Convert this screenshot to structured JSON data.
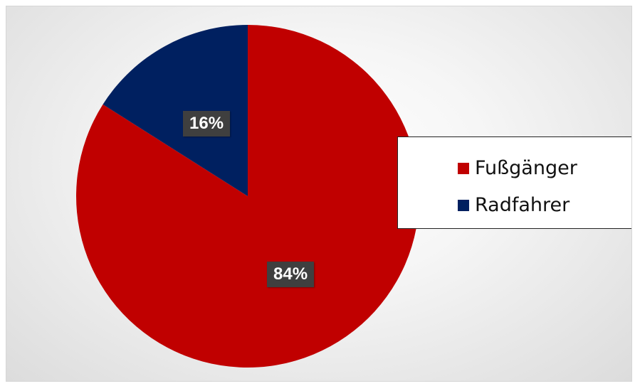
{
  "chart_data": {
    "type": "pie",
    "title": "",
    "categories": [
      "Fußgänger",
      "Radfahrer"
    ],
    "values": [
      84,
      16
    ],
    "data_labels": [
      "84%",
      "16%"
    ],
    "colors": [
      "#c00000",
      "#002060"
    ],
    "start_angle_deg": 0,
    "direction": "clockwise",
    "legend": {
      "position": "right",
      "entries": [
        "Fußgänger",
        "Radfahrer"
      ]
    }
  }
}
